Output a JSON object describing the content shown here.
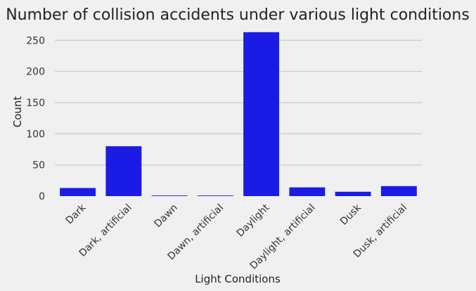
{
  "chart_data": {
    "type": "bar",
    "title": "Number of collision accidents under various light conditions",
    "xlabel": "Light Conditions",
    "ylabel": "Count",
    "categories": [
      "Dark",
      "Dark, artificial",
      "Dawn",
      "Dawn, artificial",
      "Daylight",
      "Daylight, artificial",
      "Dusk",
      "Dusk, artificial"
    ],
    "values": [
      13,
      80,
      1,
      1,
      263,
      14,
      7,
      16
    ],
    "ylim": [
      0,
      265
    ],
    "yticks": [
      0,
      50,
      100,
      150,
      200,
      250
    ],
    "grid": true,
    "colors": {
      "bar": "#1b1be6",
      "grid": "#cbcbcb",
      "background": "#f0f0f0"
    }
  }
}
